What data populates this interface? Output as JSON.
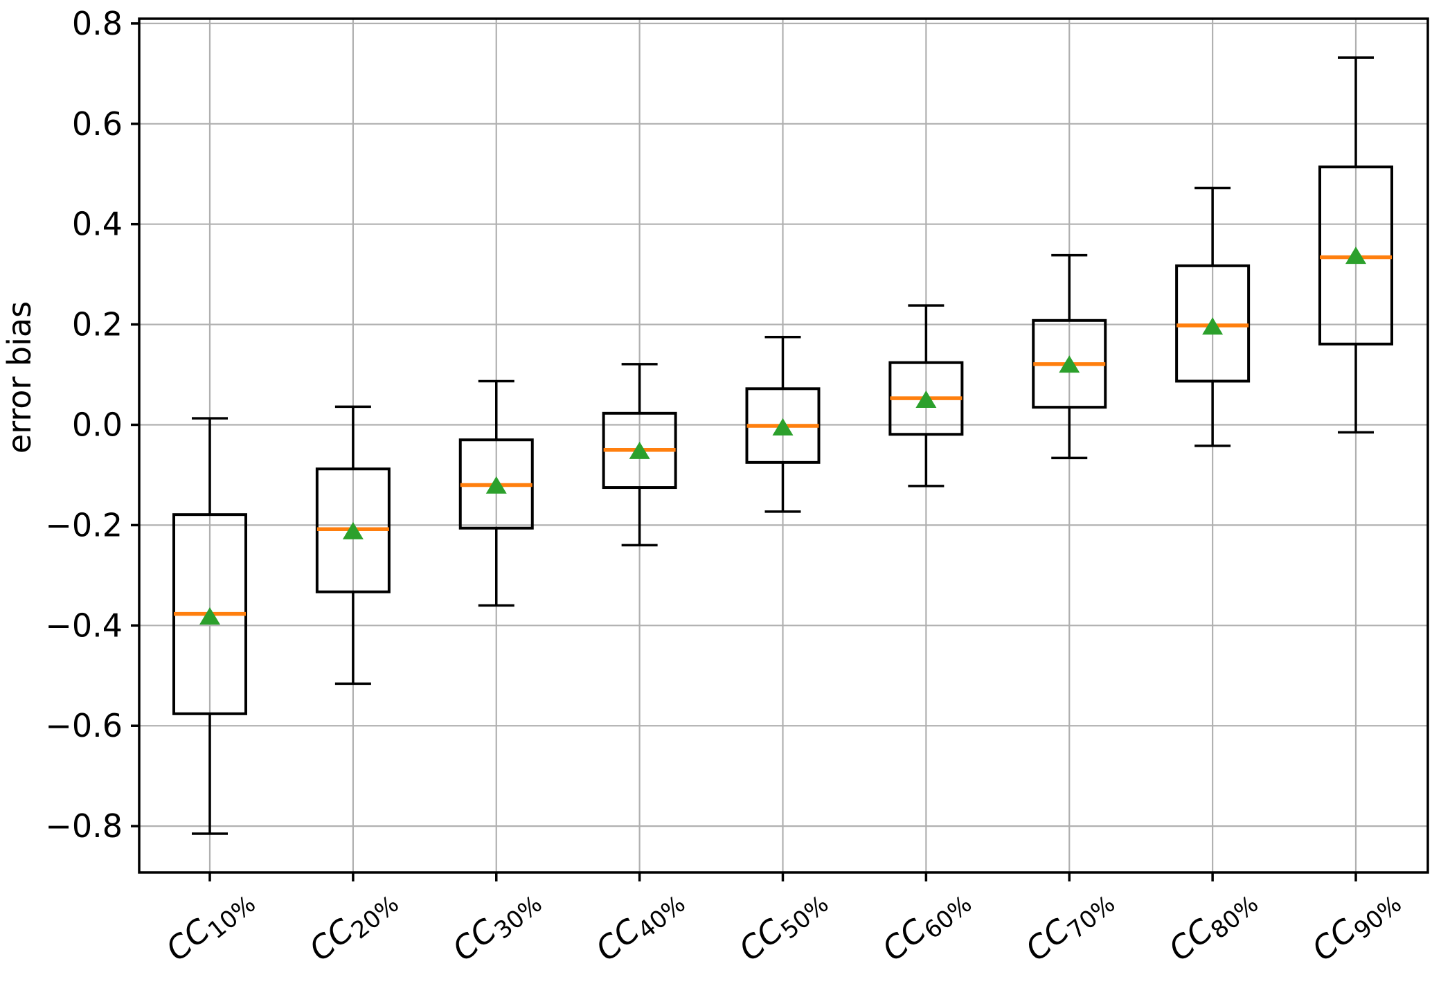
{
  "chart_data": {
    "type": "boxplot",
    "title": "",
    "xlabel": "",
    "ylabel": "error bias",
    "grid": true,
    "legend": "none",
    "ylim": [
      -0.892,
      0.811
    ],
    "yticks": [
      0.8,
      0.6,
      0.4,
      0.2,
      0.0,
      -0.2,
      -0.4,
      -0.6,
      -0.8
    ],
    "ytick_labels": [
      "0.8",
      "0.6",
      "0.4",
      "0.2",
      "0.0",
      "−0.2",
      "−0.4",
      "−0.6",
      "−0.8"
    ],
    "categories": [
      {
        "base": "CC",
        "sub": "10%"
      },
      {
        "base": "CC",
        "sub": "20%"
      },
      {
        "base": "CC",
        "sub": "30%"
      },
      {
        "base": "CC",
        "sub": "40%"
      },
      {
        "base": "CC",
        "sub": "50%"
      },
      {
        "base": "CC",
        "sub": "60%"
      },
      {
        "base": "CC",
        "sub": "70%"
      },
      {
        "base": "CC",
        "sub": "80%"
      },
      {
        "base": "CC",
        "sub": "90%"
      }
    ],
    "series": [
      {
        "name": "CC10%",
        "whisker_low": -0.815,
        "q1": -0.576,
        "median": -0.377,
        "mean": -0.383,
        "q3": -0.179,
        "whisker_high": 0.013
      },
      {
        "name": "CC20%",
        "whisker_low": -0.516,
        "q1": -0.333,
        "median": -0.208,
        "mean": -0.213,
        "q3": -0.088,
        "whisker_high": 0.036
      },
      {
        "name": "CC30%",
        "whisker_low": -0.36,
        "q1": -0.206,
        "median": -0.12,
        "mean": -0.122,
        "q3": -0.03,
        "whisker_high": 0.087
      },
      {
        "name": "CC40%",
        "whisker_low": -0.24,
        "q1": -0.125,
        "median": -0.05,
        "mean": -0.053,
        "q3": 0.023,
        "whisker_high": 0.121
      },
      {
        "name": "CC50%",
        "whisker_low": -0.173,
        "q1": -0.075,
        "median": -0.002,
        "mean": -0.006,
        "q3": 0.072,
        "whisker_high": 0.175
      },
      {
        "name": "CC60%",
        "whisker_low": -0.122,
        "q1": -0.019,
        "median": 0.053,
        "mean": 0.049,
        "q3": 0.124,
        "whisker_high": 0.238
      },
      {
        "name": "CC70%",
        "whisker_low": -0.066,
        "q1": 0.035,
        "median": 0.121,
        "mean": 0.119,
        "q3": 0.208,
        "whisker_high": 0.338
      },
      {
        "name": "CC80%",
        "whisker_low": -0.042,
        "q1": 0.087,
        "median": 0.198,
        "mean": 0.195,
        "q3": 0.317,
        "whisker_high": 0.472
      },
      {
        "name": "CC90%",
        "whisker_low": -0.015,
        "q1": 0.161,
        "median": 0.334,
        "mean": 0.336,
        "q3": 0.514,
        "whisker_high": 0.732
      }
    ],
    "colors": {
      "box_line": "#000000",
      "median_line": "#ff7f0e",
      "mean_marker": "#2ca02c",
      "grid_line": "#b0b0b0",
      "spine": "#000000",
      "background": "#ffffff"
    }
  }
}
